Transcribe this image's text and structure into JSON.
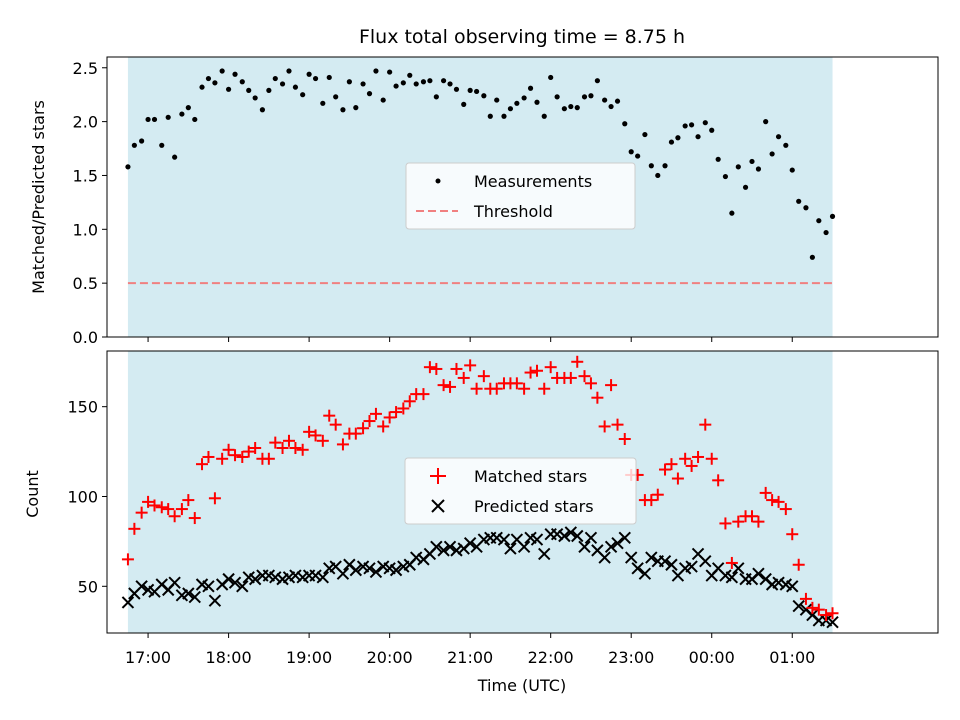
{
  "title": "Flux total observing time = 8.75 h",
  "colors": {
    "observing_window": "#add8e6",
    "threshold": "#f08080",
    "matched": "#ff0000",
    "predicted": "#000000",
    "measurement": "#000000"
  },
  "chart_data": [
    {
      "type": "scatter",
      "ylabel": "Matched/Predicted stars",
      "xlim": [
        16.49,
        26.81
      ],
      "ylim": [
        0,
        2.6
      ],
      "yticks": [
        0.0,
        0.5,
        1.0,
        1.5,
        2.0,
        2.5
      ],
      "ytick_labels": [
        "0.0",
        "0.5",
        "1.0",
        "1.5",
        "2.0",
        "2.5"
      ],
      "x_unit": "hours UTC (values > 24 are after midnight)",
      "shaded_span": [
        16.75,
        25.5
      ],
      "legend": {
        "placement": "center",
        "entries": [
          "Measurements",
          "Threshold"
        ]
      },
      "threshold": {
        "name": "Threshold",
        "y": 0.5,
        "style": "dashed"
      },
      "series": [
        {
          "name": "Measurements",
          "marker": "dot",
          "x": [
            16.75,
            16.83,
            16.92,
            17.0,
            17.08,
            17.17,
            17.25,
            17.33,
            17.42,
            17.5,
            17.58,
            17.67,
            17.75,
            17.83,
            17.92,
            18.0,
            18.08,
            18.17,
            18.25,
            18.33,
            18.42,
            18.5,
            18.58,
            18.67,
            18.75,
            18.83,
            18.92,
            19.0,
            19.08,
            19.17,
            19.25,
            19.33,
            19.42,
            19.5,
            19.58,
            19.67,
            19.75,
            19.83,
            19.92,
            20.0,
            20.08,
            20.17,
            20.25,
            20.33,
            20.42,
            20.5,
            20.58,
            20.67,
            20.75,
            20.83,
            20.92,
            21.0,
            21.08,
            21.17,
            21.25,
            21.33,
            21.42,
            21.5,
            21.58,
            21.67,
            21.75,
            21.83,
            21.92,
            22.0,
            22.08,
            22.17,
            22.25,
            22.33,
            22.42,
            22.5,
            22.58,
            22.67,
            22.75,
            22.83,
            22.92,
            23.0,
            23.08,
            23.17,
            23.25,
            23.33,
            23.42,
            23.5,
            23.58,
            23.67,
            23.75,
            23.83,
            23.92,
            24.0,
            24.08,
            24.17,
            24.25,
            24.33,
            24.42,
            24.5,
            24.58,
            24.67,
            24.75,
            24.83,
            24.92,
            25.0,
            25.08,
            25.17,
            25.25,
            25.33,
            25.42,
            25.5
          ],
          "y": [
            1.58,
            1.78,
            1.82,
            2.02,
            2.02,
            1.78,
            2.04,
            1.67,
            2.07,
            2.13,
            2.02,
            2.32,
            2.4,
            2.36,
            2.47,
            2.3,
            2.44,
            2.37,
            2.29,
            2.22,
            2.11,
            2.29,
            2.4,
            2.35,
            2.47,
            2.32,
            2.25,
            2.44,
            2.4,
            2.17,
            2.41,
            2.23,
            2.11,
            2.37,
            2.13,
            2.35,
            2.26,
            2.47,
            2.2,
            2.46,
            2.33,
            2.36,
            2.43,
            2.35,
            2.37,
            2.38,
            2.23,
            2.38,
            2.35,
            2.3,
            2.16,
            2.29,
            2.28,
            2.24,
            2.05,
            2.2,
            2.05,
            2.12,
            2.17,
            2.22,
            2.31,
            2.18,
            2.05,
            2.41,
            2.23,
            2.12,
            2.14,
            2.13,
            2.23,
            2.24,
            2.38,
            2.2,
            2.14,
            2.19,
            1.98,
            1.72,
            1.68,
            1.88,
            1.59,
            1.5,
            1.59,
            1.81,
            1.85,
            1.96,
            1.97,
            1.86,
            1.99,
            1.92,
            1.65,
            1.49,
            1.15,
            1.58,
            1.39,
            1.63,
            1.56,
            2.0,
            1.7,
            1.86,
            1.78,
            1.55,
            1.26,
            1.2,
            0.74,
            1.08,
            0.97,
            1.12
          ]
        }
      ]
    },
    {
      "type": "scatter",
      "ylabel": "Count",
      "xlabel": "Time (UTC)",
      "xlim": [
        16.49,
        26.81
      ],
      "ylim": [
        24,
        181
      ],
      "yticks": [
        50,
        100,
        150
      ],
      "ytick_labels": [
        "50",
        "100",
        "150"
      ],
      "xticks": [
        17,
        18,
        19,
        20,
        21,
        22,
        23,
        24,
        25
      ],
      "xtick_labels": [
        "17:00",
        "18:00",
        "19:00",
        "20:00",
        "21:00",
        "22:00",
        "23:00",
        "00:00",
        "01:00"
      ],
      "x_unit": "hours UTC (values > 24 are after midnight)",
      "shaded_span": [
        16.75,
        25.5
      ],
      "legend": {
        "placement": "center",
        "entries": [
          "Matched stars",
          "Predicted stars"
        ]
      },
      "series": [
        {
          "name": "Matched stars",
          "marker": "plus",
          "x": [
            16.75,
            16.83,
            16.92,
            17.0,
            17.08,
            17.17,
            17.25,
            17.33,
            17.42,
            17.5,
            17.58,
            17.67,
            17.75,
            17.83,
            17.92,
            18.0,
            18.08,
            18.17,
            18.25,
            18.33,
            18.42,
            18.5,
            18.58,
            18.67,
            18.75,
            18.83,
            18.92,
            19.0,
            19.08,
            19.17,
            19.25,
            19.33,
            19.42,
            19.5,
            19.58,
            19.67,
            19.75,
            19.83,
            19.92,
            20.0,
            20.08,
            20.17,
            20.25,
            20.33,
            20.42,
            20.5,
            20.58,
            20.67,
            20.75,
            20.83,
            20.92,
            21.0,
            21.08,
            21.17,
            21.25,
            21.33,
            21.42,
            21.5,
            21.58,
            21.67,
            21.75,
            21.83,
            21.92,
            22.0,
            22.08,
            22.17,
            22.25,
            22.33,
            22.42,
            22.5,
            22.58,
            22.67,
            22.75,
            22.83,
            22.92,
            23.0,
            23.08,
            23.17,
            23.25,
            23.33,
            23.42,
            23.5,
            23.58,
            23.67,
            23.75,
            23.83,
            23.92,
            24.0,
            24.08,
            24.17,
            24.25,
            24.33,
            24.42,
            24.5,
            24.58,
            24.67,
            24.75,
            24.83,
            24.92,
            25.0,
            25.08,
            25.17,
            25.25,
            25.33,
            25.42,
            25.5
          ],
          "y": [
            65,
            82,
            91,
            97,
            95,
            94,
            93,
            89,
            93,
            98,
            88,
            118,
            122,
            99,
            121,
            126,
            123,
            122,
            125,
            127,
            121,
            121,
            130,
            127,
            131,
            127,
            126,
            136,
            134,
            131,
            145,
            140,
            129,
            135,
            135,
            138,
            142,
            146,
            139,
            144,
            147,
            149,
            153,
            157,
            157,
            172,
            171,
            162,
            161,
            171,
            166,
            173,
            160,
            167,
            160,
            160,
            163,
            163,
            163,
            160,
            169,
            170,
            160,
            172,
            166,
            166,
            166,
            175,
            167,
            163,
            155,
            139,
            162,
            140,
            132,
            112,
            112,
            98,
            98,
            101,
            115,
            118,
            110,
            121,
            117,
            122,
            140,
            121,
            109,
            85,
            63,
            86,
            89,
            89,
            86,
            102,
            98,
            97,
            93,
            79,
            62,
            43,
            38,
            37,
            34,
            35
          ]
        },
        {
          "name": "Predicted stars",
          "marker": "x",
          "x": [
            16.75,
            16.83,
            16.92,
            17.0,
            17.08,
            17.17,
            17.25,
            17.33,
            17.42,
            17.5,
            17.58,
            17.67,
            17.75,
            17.83,
            17.92,
            18.0,
            18.08,
            18.17,
            18.25,
            18.33,
            18.42,
            18.5,
            18.58,
            18.67,
            18.75,
            18.83,
            18.92,
            19.0,
            19.08,
            19.17,
            19.25,
            19.33,
            19.42,
            19.5,
            19.58,
            19.67,
            19.75,
            19.83,
            19.92,
            20.0,
            20.08,
            20.17,
            20.25,
            20.33,
            20.42,
            20.5,
            20.58,
            20.67,
            20.75,
            20.83,
            20.92,
            21.0,
            21.08,
            21.17,
            21.25,
            21.33,
            21.42,
            21.5,
            21.58,
            21.67,
            21.75,
            21.83,
            21.92,
            22.0,
            22.08,
            22.17,
            22.25,
            22.33,
            22.42,
            22.5,
            22.58,
            22.67,
            22.75,
            22.83,
            22.92,
            23.0,
            23.08,
            23.17,
            23.25,
            23.33,
            23.42,
            23.5,
            23.58,
            23.67,
            23.75,
            23.83,
            23.92,
            24.0,
            24.08,
            24.17,
            24.25,
            24.33,
            24.42,
            24.5,
            24.58,
            24.67,
            24.75,
            24.83,
            24.92,
            25.0,
            25.08,
            25.17,
            25.25,
            25.33,
            25.42,
            25.5
          ],
          "y": [
            41,
            46,
            50,
            48,
            47,
            51,
            48,
            52,
            45,
            46,
            44,
            51,
            50,
            42,
            51,
            54,
            52,
            50,
            55,
            54,
            56,
            56,
            55,
            54,
            55,
            56,
            55,
            56,
            56,
            55,
            60,
            61,
            57,
            62,
            59,
            61,
            60,
            58,
            61,
            60,
            59,
            61,
            62,
            66,
            65,
            68,
            72,
            70,
            72,
            70,
            71,
            74,
            72,
            76,
            77,
            77,
            76,
            71,
            76,
            72,
            77,
            76,
            68,
            79,
            79,
            78,
            80,
            78,
            72,
            77,
            70,
            66,
            72,
            74,
            77,
            66,
            60,
            57,
            66,
            64,
            64,
            62,
            56,
            60,
            61,
            68,
            64,
            56,
            60,
            56,
            55,
            60,
            54,
            54,
            57,
            54,
            51,
            52,
            51,
            50,
            39,
            37,
            34,
            31,
            31,
            30
          ]
        }
      ]
    }
  ]
}
